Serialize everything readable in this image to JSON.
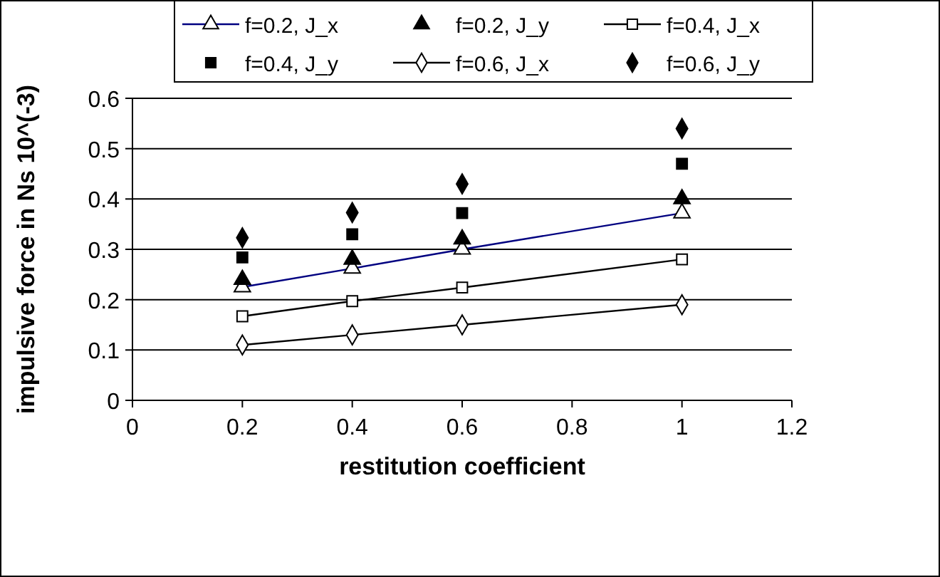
{
  "chart_data": {
    "type": "line",
    "xlabel": "restitution coefficient",
    "ylabel": "impulsive force in Ns 10^(-3)",
    "x": [
      0.2,
      0.4,
      0.6,
      1.0
    ],
    "xlim": [
      0,
      1.2
    ],
    "xticks": [
      0,
      0.2,
      0.4,
      0.6,
      0.8,
      1,
      1.2
    ],
    "ylim": [
      0,
      0.6
    ],
    "yticks": [
      0,
      0.1,
      0.2,
      0.3,
      0.4,
      0.5,
      0.6
    ],
    "grid": "y",
    "legend": "top",
    "series": [
      {
        "name": "f=0.2, J_x",
        "marker": "triangle",
        "color": "#000080",
        "values": [
          0.225,
          0.262,
          0.3,
          0.372
        ]
      },
      {
        "name": "f=0.2, J_y",
        "type": "scatter",
        "marker": "triangle",
        "color": "#000000",
        "values": [
          0.24,
          0.28,
          0.32,
          0.4
        ]
      },
      {
        "name": "f=0.4, J_x",
        "marker": "square",
        "color": "#000000",
        "values": [
          0.167,
          0.197,
          0.224,
          0.28
        ]
      },
      {
        "name": "f=0.4, J_y",
        "type": "scatter",
        "marker": "square",
        "color": "#000000",
        "values": [
          0.284,
          0.33,
          0.372,
          0.47
        ]
      },
      {
        "name": "f=0.6, J_x",
        "marker": "diamond",
        "color": "#000000",
        "values": [
          0.11,
          0.13,
          0.15,
          0.19
        ]
      },
      {
        "name": "f=0.6, J_y",
        "type": "scatter",
        "marker": "diamond",
        "color": "#000000",
        "values": [
          0.323,
          0.373,
          0.43,
          0.54
        ]
      }
    ]
  }
}
